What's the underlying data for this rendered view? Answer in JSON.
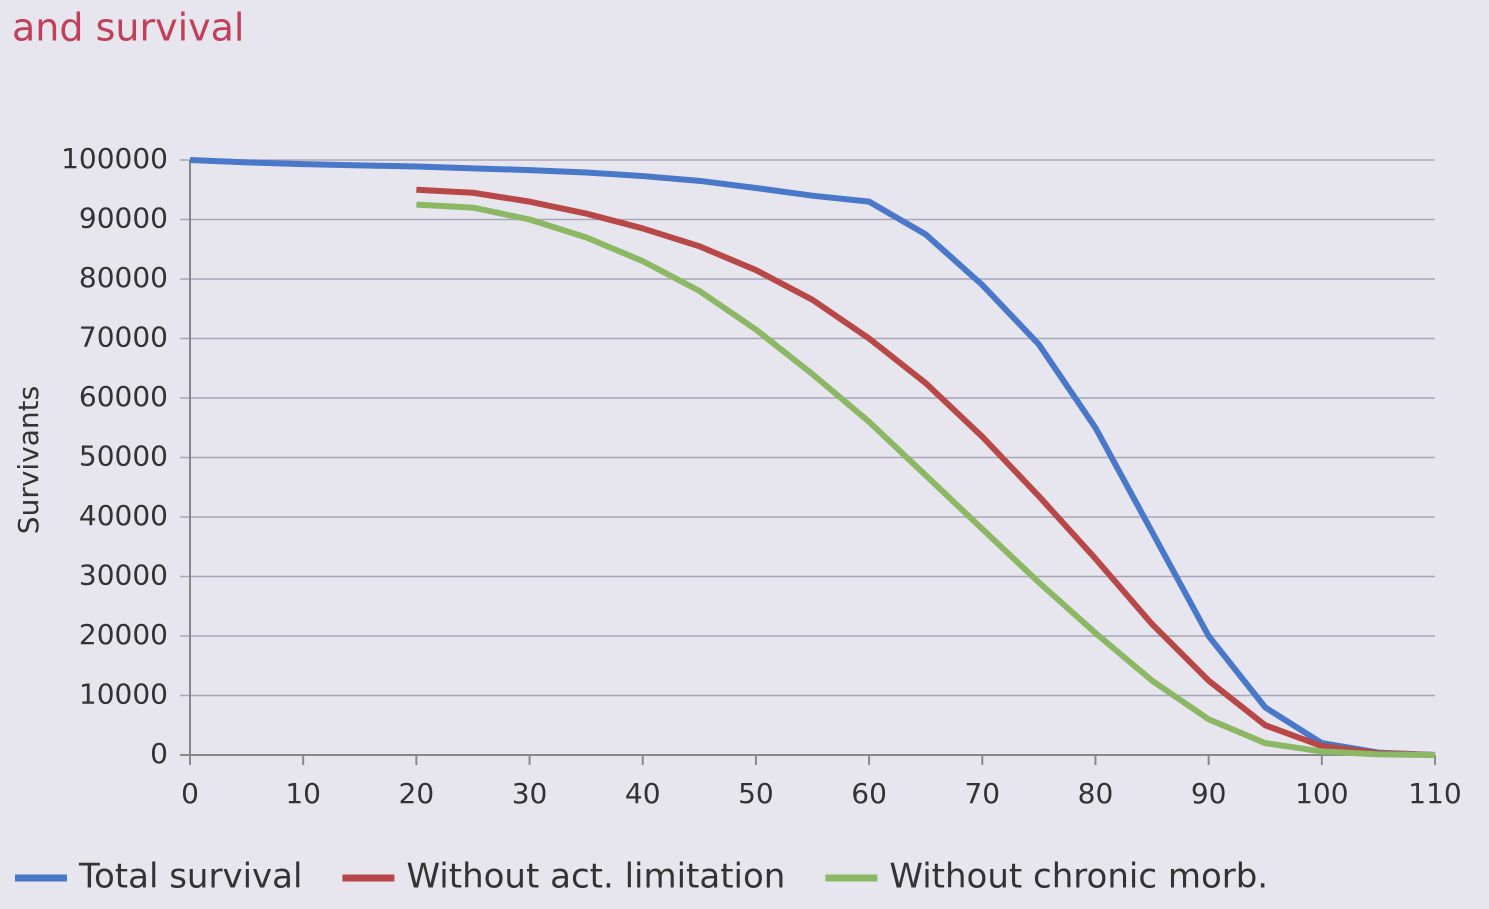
{
  "chart_data": {
    "type": "line",
    "title": "and survival",
    "y_label": "Survivants",
    "x": [
      0,
      5,
      10,
      15,
      20,
      25,
      30,
      35,
      40,
      45,
      50,
      55,
      60,
      65,
      70,
      75,
      80,
      85,
      90,
      95,
      100,
      105,
      110
    ],
    "series": [
      {
        "name": "Total survival",
        "color": "#4a78c8",
        "values": [
          100000,
          99600,
          99300,
          99100,
          98900,
          98600,
          98300,
          97900,
          97300,
          96500,
          95300,
          94000,
          93000,
          87500,
          79000,
          69000,
          55000,
          37500,
          20000,
          8000,
          2000,
          400,
          0
        ]
      },
      {
        "name": "Without act. limitation",
        "color": "#b84848",
        "values": [
          null,
          null,
          null,
          null,
          95000,
          94500,
          93000,
          91000,
          88500,
          85500,
          81500,
          76500,
          70000,
          62500,
          53500,
          43500,
          33000,
          22000,
          12500,
          5000,
          1500,
          300,
          0
        ]
      },
      {
        "name": "Without chronic morb.",
        "color": "#8cb866",
        "values": [
          null,
          null,
          null,
          null,
          92500,
          92000,
          90000,
          87000,
          83000,
          78000,
          71500,
          64000,
          56000,
          47000,
          38000,
          29000,
          20500,
          12500,
          6000,
          2000,
          600,
          100,
          0
        ]
      }
    ],
    "xlim": [
      0,
      110
    ],
    "xticks": [
      0,
      10,
      20,
      30,
      40,
      50,
      60,
      70,
      80,
      90,
      100,
      110
    ],
    "ylim": [
      0,
      100000
    ],
    "yticks": [
      0,
      10000,
      20000,
      30000,
      40000,
      50000,
      60000,
      70000,
      80000,
      90000,
      100000
    ],
    "grid": true,
    "legend": "bottom"
  }
}
